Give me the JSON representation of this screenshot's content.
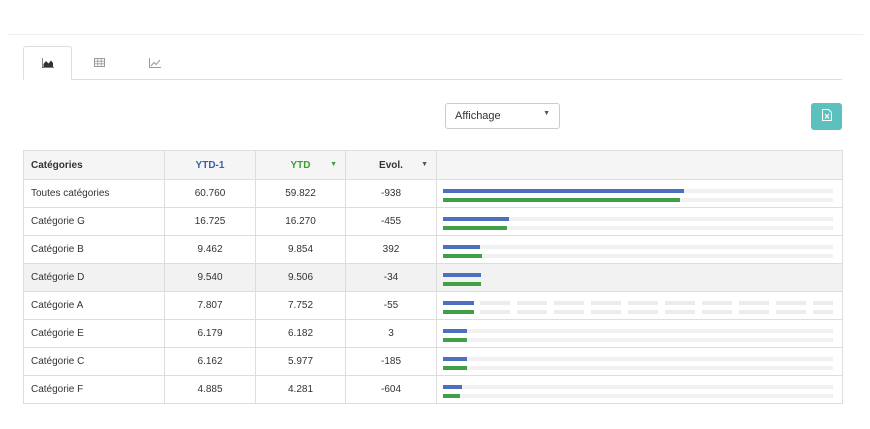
{
  "tabs": [
    {
      "icon": "area-chart-icon",
      "active": true
    },
    {
      "icon": "table-icon",
      "active": false
    },
    {
      "icon": "line-chart-icon",
      "active": false
    }
  ],
  "display_select": {
    "value": "Affichage"
  },
  "export_button": {
    "icon": "excel-file-icon",
    "color": "#5bc0be"
  },
  "table": {
    "headers": {
      "category": "Catégories",
      "ytd1": "YTD-1",
      "ytd": "YTD",
      "evol": "Evol."
    },
    "colors": {
      "ytd1": "#4d6fbf",
      "ytd": "#3fa046"
    },
    "bar_max": 60760,
    "rows": [
      {
        "name": "Toutes catégories",
        "ytd1": "60.760",
        "ytd": "59.822",
        "evol": "-938",
        "v1": 60760,
        "v2": 59822
      },
      {
        "name": "Catégorie G",
        "ytd1": "16.725",
        "ytd": "16.270",
        "evol": "-455",
        "v1": 16725,
        "v2": 16270
      },
      {
        "name": "Catégorie B",
        "ytd1": "9.462",
        "ytd": "9.854",
        "evol": "392",
        "v1": 9462,
        "v2": 9854
      },
      {
        "name": "Catégorie D",
        "ytd1": "9.540",
        "ytd": "9.506",
        "evol": "-34",
        "v1": 9540,
        "v2": 9506
      },
      {
        "name": "Catégorie A",
        "ytd1": "7.807",
        "ytd": "7.752",
        "evol": "-55",
        "v1": 7807,
        "v2": 7752
      },
      {
        "name": "Catégorie E",
        "ytd1": "6.179",
        "ytd": "6.182",
        "evol": "3",
        "v1": 6179,
        "v2": 6182
      },
      {
        "name": "Catégorie C",
        "ytd1": "6.162",
        "ytd": "5.977",
        "evol": "-185",
        "v1": 6162,
        "v2": 5977
      },
      {
        "name": "Catégorie F",
        "ytd1": "4.885",
        "ytd": "4.281",
        "evol": "-604",
        "v1": 4885,
        "v2": 4281
      }
    ]
  }
}
